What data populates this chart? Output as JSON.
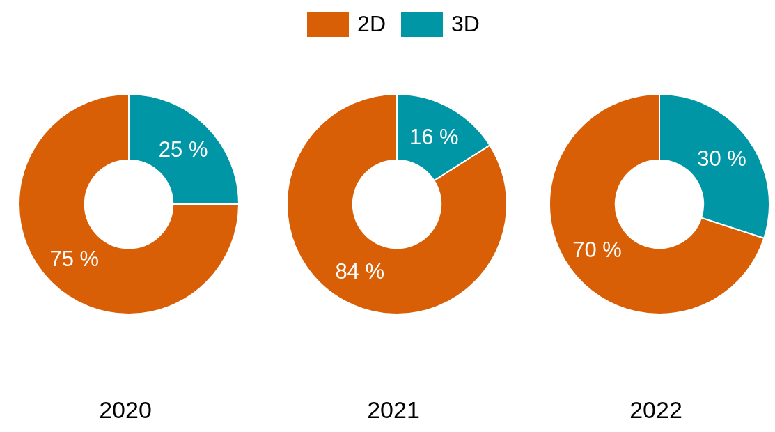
{
  "chart_data": [
    {
      "type": "donut",
      "xlabel": "2020",
      "categories": [
        null,
        null
      ],
      "values": [
        75,
        25
      ],
      "colors": [
        "#d95f07",
        "#0096a6"
      ],
      "value_labels": [
        "75 %",
        "25 %"
      ]
    },
    {
      "type": "donut",
      "xlabel": "2021",
      "categories": [
        "2D",
        "3D"
      ],
      "values": [
        84,
        16
      ],
      "colors": [
        "#d95f07",
        "#0096a6"
      ],
      "value_labels": [
        "84 %",
        "16 %"
      ],
      "legend": "top"
    },
    {
      "type": "donut",
      "xlabel": "2022",
      "categories": [
        null,
        null
      ],
      "values": [
        70,
        30
      ],
      "colors": [
        "#d95f07",
        "#0096a6"
      ],
      "value_labels": [
        "70 %",
        "30 %"
      ]
    }
  ]
}
